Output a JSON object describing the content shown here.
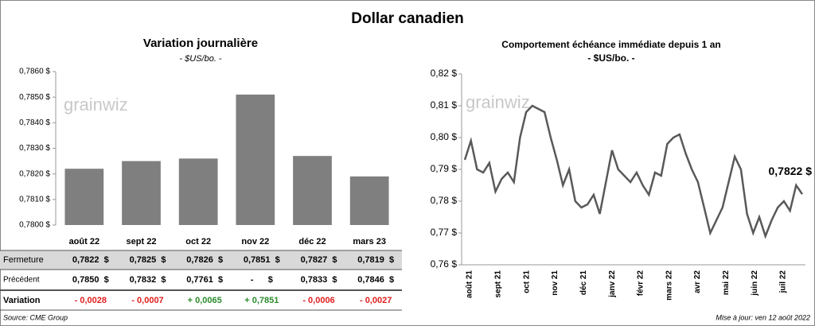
{
  "title": "Dollar canadien",
  "watermark": "grainwiz",
  "chart_data": [
    {
      "type": "bar",
      "title": "Variation  journalière",
      "subtitle": "- $US/bo. -",
      "categories": [
        "août 22",
        "sept 22",
        "oct 22",
        "nov 22",
        "déc 22",
        "mars 23"
      ],
      "values": [
        0.7822,
        0.7825,
        0.7826,
        0.7851,
        0.7827,
        0.7819
      ],
      "color": "#7f7f7f",
      "ylim": [
        0.78,
        0.786
      ],
      "yticks": [
        {
          "value": 0.78,
          "label": "0,7800 $"
        },
        {
          "value": 0.781,
          "label": "0,7810 $"
        },
        {
          "value": 0.782,
          "label": "0,7820 $"
        },
        {
          "value": 0.783,
          "label": "0,7830 $"
        },
        {
          "value": 0.784,
          "label": "0,7840 $"
        },
        {
          "value": 0.785,
          "label": "0,7850 $"
        },
        {
          "value": 0.786,
          "label": "0,7860 $"
        }
      ]
    },
    {
      "type": "line",
      "title": "Comportement échéance immédiate depuis 1 an",
      "subtitle": "- $US/bo. -",
      "x_labels": [
        "août 21",
        "sept 21",
        "oct 21",
        "nov 21",
        "déc 21",
        "janv 22",
        "févr 22",
        "mars 22",
        "avr 22",
        "mai 22",
        "juin 22",
        "juil 22"
      ],
      "values": [
        0.793,
        0.799,
        0.79,
        0.789,
        0.792,
        0.783,
        0.787,
        0.789,
        0.786,
        0.8,
        0.808,
        0.81,
        0.809,
        0.808,
        0.8,
        0.793,
        0.785,
        0.79,
        0.78,
        0.778,
        0.779,
        0.782,
        0.776,
        0.786,
        0.796,
        0.79,
        0.788,
        0.786,
        0.789,
        0.785,
        0.782,
        0.789,
        0.788,
        0.798,
        0.8,
        0.801,
        0.795,
        0.79,
        0.786,
        0.778,
        0.77,
        0.774,
        0.778,
        0.786,
        0.794,
        0.79,
        0.776,
        0.77,
        0.775,
        0.769,
        0.774,
        0.778,
        0.78,
        0.777,
        0.785,
        0.7822
      ],
      "color": "#595959",
      "annotation": "0,7822 $",
      "ylim": [
        0.76,
        0.82
      ],
      "yticks": [
        {
          "value": 0.76,
          "label": "0,76 $"
        },
        {
          "value": 0.77,
          "label": "0,77 $"
        },
        {
          "value": 0.78,
          "label": "0,78 $"
        },
        {
          "value": 0.79,
          "label": "0,79 $"
        },
        {
          "value": 0.8,
          "label": "0,80 $"
        },
        {
          "value": 0.81,
          "label": "0,81 $"
        },
        {
          "value": 0.82,
          "label": "0,82 $"
        }
      ]
    }
  ],
  "table": {
    "rows": [
      {
        "label": "Fermeture",
        "cells": [
          "0,7822  $",
          "0,7825  $",
          "0,7826  $",
          "0,7851  $",
          "0,7827  $",
          "0,7819  $"
        ]
      },
      {
        "label": "Précédent",
        "cells": [
          "0,7850  $",
          "0,7832  $",
          "0,7761  $",
          "-      $",
          "0,7833  $",
          "0,7846  $"
        ]
      },
      {
        "label": "Variation",
        "cells": [
          "- 0,0028",
          "- 0,0007",
          "+ 0,0065",
          "+ 0,7851",
          "- 0,0006",
          "- 0,0027"
        ]
      }
    ]
  },
  "source": "Source: CME Group",
  "updated": "Mise à jour: ven 12 août 2022"
}
